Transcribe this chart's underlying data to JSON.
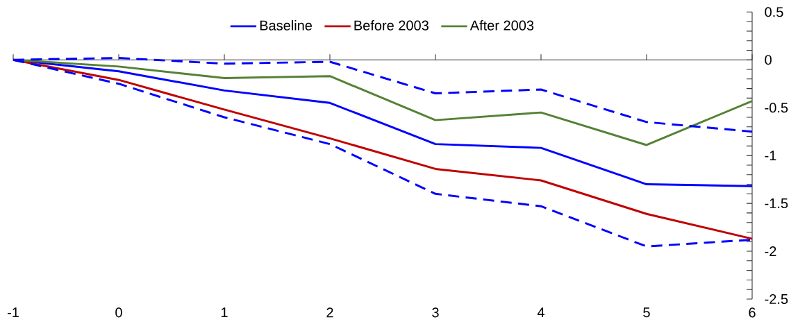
{
  "chart_data": {
    "type": "line",
    "x": [
      -1,
      0,
      1,
      2,
      3,
      4,
      5,
      6
    ],
    "series": [
      {
        "name": "Baseline",
        "color": "#0000ff",
        "line_style": "solid",
        "values": [
          0,
          -0.12,
          -0.32,
          -0.45,
          -0.88,
          -0.92,
          -1.3,
          -1.32
        ]
      },
      {
        "name": "Before 2003",
        "color": "#c00000",
        "line_style": "solid",
        "values": [
          0,
          -0.21,
          -0.52,
          -0.82,
          -1.14,
          -1.26,
          -1.61,
          -1.87
        ]
      },
      {
        "name": "After 2003",
        "color": "#548235",
        "line_style": "solid",
        "values": [
          0,
          -0.07,
          -0.19,
          -0.17,
          -0.63,
          -0.55,
          -0.89,
          -0.43
        ]
      },
      {
        "color": "#0000ff",
        "line_style": "dashed",
        "values": [
          0,
          0.02,
          -0.04,
          -0.02,
          -0.35,
          -0.31,
          -0.65,
          -0.75
        ]
      },
      {
        "color": "#0000ff",
        "line_style": "dashed",
        "values": [
          0,
          -0.25,
          -0.6,
          -0.88,
          -1.4,
          -1.53,
          -1.95,
          -1.88
        ]
      }
    ],
    "xlim": [
      -1,
      6
    ],
    "ylim": [
      -2.5,
      0.5
    ],
    "xticks": [
      -1,
      0,
      1,
      2,
      3,
      4,
      5,
      6
    ],
    "yticks": [
      0.5,
      0,
      -0.5,
      -1,
      -1.5,
      -2,
      -2.5
    ],
    "legend": "top"
  }
}
